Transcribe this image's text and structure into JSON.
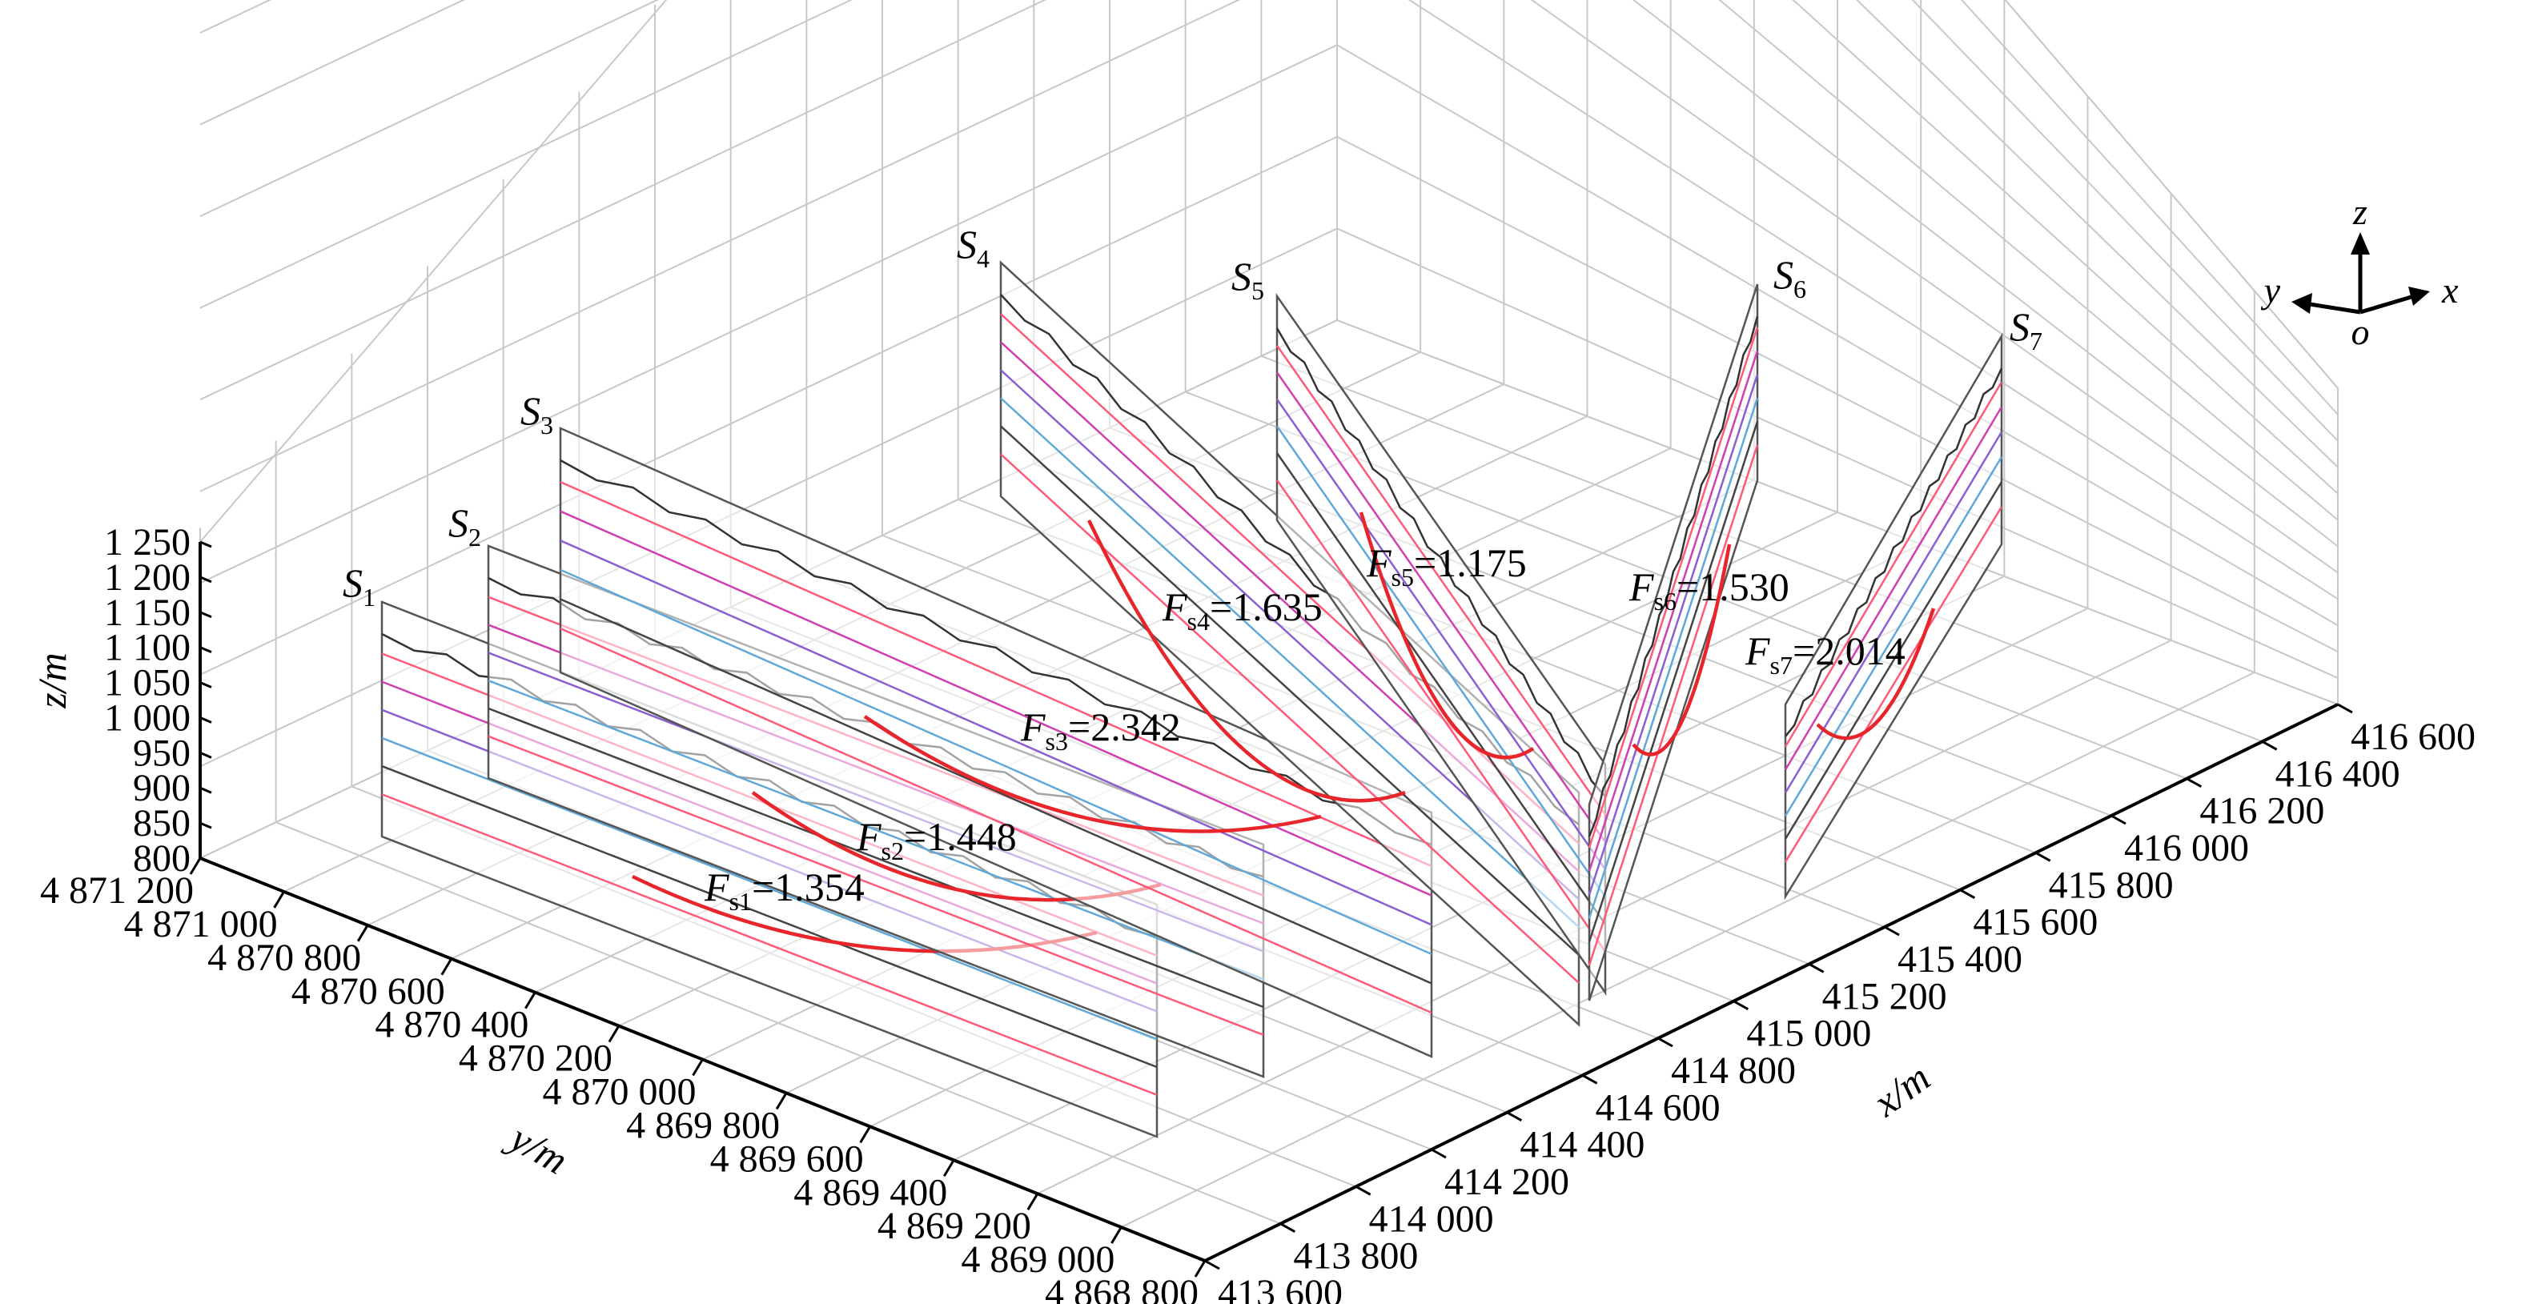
{
  "chart_data": {
    "type": "3d-line",
    "axes": {
      "x": {
        "label": "x/m",
        "ticks": [
          "413 600",
          "413 800",
          "414 000",
          "414 200",
          "414 400",
          "414 600",
          "414 800",
          "415 000",
          "415 200",
          "415 400",
          "415 600",
          "415 800",
          "416 000",
          "416 200",
          "416 400",
          "416 600"
        ]
      },
      "y": {
        "label": "y/m",
        "ticks": [
          "4 868 800",
          "4 869 000",
          "4 869 200",
          "4 869 400",
          "4 869 600",
          "4 869 800",
          "4 870 000",
          "4 870 200",
          "4 870 400",
          "4 870 600",
          "4 870 800",
          "4 871 000",
          "4 871 200"
        ]
      },
      "z": {
        "label": "z/m",
        "ticks": [
          "800",
          "850",
          "900",
          "950",
          "1 000",
          "1 050",
          "1 100",
          "1 150",
          "1 200",
          "1 250"
        ]
      }
    },
    "orientation": {
      "x": "x",
      "y": "y",
      "z": "z",
      "origin": "o"
    },
    "sections": [
      {
        "name": "S",
        "sub": "1",
        "fs_label": "F",
        "fs_sub": "s1",
        "fs_value": "=1.354"
      },
      {
        "name": "S",
        "sub": "2",
        "fs_label": "F",
        "fs_sub": "s2",
        "fs_value": "=1.448"
      },
      {
        "name": "S",
        "sub": "3",
        "fs_label": "F",
        "fs_sub": "s3",
        "fs_value": "=2.342"
      },
      {
        "name": "S",
        "sub": "4",
        "fs_label": "F",
        "fs_sub": "s4",
        "fs_value": "=1.635"
      },
      {
        "name": "S",
        "sub": "5",
        "fs_label": "F",
        "fs_sub": "s5",
        "fs_value": "=1.175"
      },
      {
        "name": "S",
        "sub": "6",
        "fs_label": "F",
        "fs_sub": "s6",
        "fs_value": "=1.530"
      },
      {
        "name": "S",
        "sub": "7",
        "fs_label": "F",
        "fs_sub": "s7",
        "fs_value": "=2.014"
      }
    ],
    "grid": true,
    "colors": {
      "frame": "#000000",
      "grid": "#c8c8c8",
      "slip_surface": "#e8252b",
      "strata": [
        "#ff5a7a",
        "#d040b0",
        "#8a60d0",
        "#60a8d8",
        "#444444"
      ]
    }
  }
}
